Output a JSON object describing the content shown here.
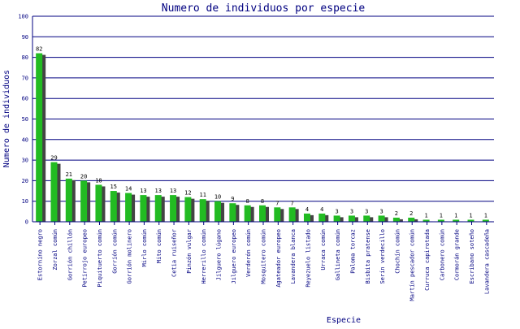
{
  "chart_data": {
    "type": "bar",
    "title": "Numero de individuos por especie",
    "xlabel": "Especie",
    "ylabel": "Numero de individuos",
    "ylim": [
      0,
      100
    ],
    "yticks": [
      0,
      10,
      20,
      30,
      40,
      50,
      60,
      70,
      80,
      90,
      100
    ],
    "grid": true,
    "bar_color": "#22bb22",
    "shadow_color": "#444444",
    "grid_color": "#000080",
    "categories": [
      "Estornino negro",
      "Zorzal común",
      "Gorrión chillón",
      "Petirrojo europeo",
      "Piquituerto común",
      "Gorrión común",
      "Gorrión molinero",
      "Mirlo común",
      "Mito común",
      "Cetia ruiseñor",
      "Pinzón vulgar",
      "Herrerillo común",
      "Jilguero lúgano",
      "Jilguero europeo",
      "Verderón común",
      "Mosquitero común",
      "Agateador europeo",
      "Lavandera blanca",
      "Reyezuelo listado",
      "Urraca común",
      "Gallineta común",
      "Paloma torcaz",
      "Bisbita pratense",
      "Serín verdecillo",
      "Chochín común",
      "Martín pescador común",
      "Curruca capirotada",
      "Carbonero común",
      "Cormorán grande",
      "Escribano soteño",
      "Lavandera cascadeña"
    ],
    "values": [
      82,
      29,
      21,
      20,
      18,
      15,
      14,
      13,
      13,
      13,
      12,
      11,
      10,
      9,
      8,
      8,
      7,
      7,
      4,
      4,
      3,
      3,
      3,
      3,
      2,
      2,
      1,
      1,
      1,
      1,
      1
    ]
  }
}
